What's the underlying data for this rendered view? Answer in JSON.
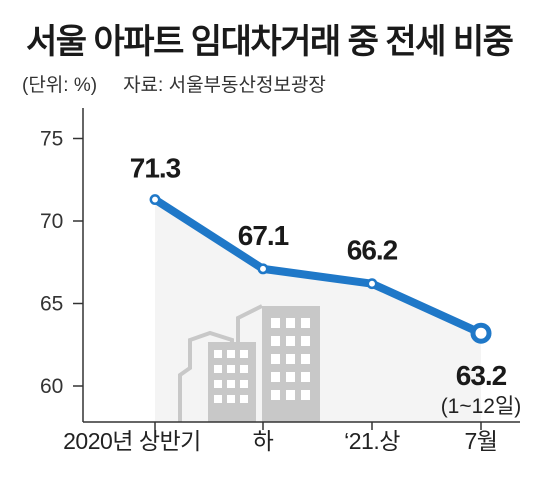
{
  "title": "서울 아파트 임대차거래 중 전세 비중",
  "unit_label": "(단위: %)",
  "source_label": "자료: 서울부동산정보광장",
  "chart_data": {
    "type": "line",
    "title": "서울 아파트 임대차거래 중 전세 비중",
    "categories": [
      "2020년 상반기",
      "하",
      "‘21.상",
      "7월"
    ],
    "values": [
      71.3,
      67.1,
      66.2,
      63.2
    ],
    "value_labels": [
      "71.3",
      "67.1",
      "66.2",
      "63.2"
    ],
    "last_note": "(1~12일)",
    "ylim": [
      58,
      76
    ],
    "yticks": [
      60,
      65,
      70,
      75
    ],
    "line_color": "#1f78c8",
    "axis_color": "#333333",
    "building_color": "#c8c8c8",
    "grid": false
  }
}
